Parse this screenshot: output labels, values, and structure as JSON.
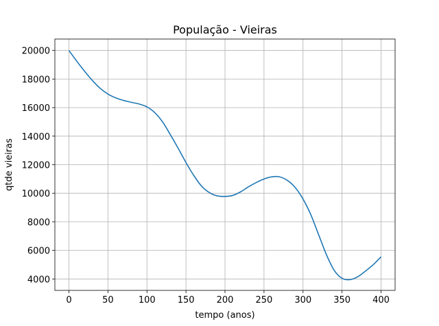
{
  "chart_data": {
    "type": "line",
    "title": "População - Vieiras",
    "xlabel": "tempo (anos)",
    "ylabel": "qtde vieiras",
    "xlim": [
      -18,
      418
    ],
    "ylim": [
      3200,
      20800
    ],
    "xticks": [
      0,
      50,
      100,
      150,
      200,
      250,
      300,
      350,
      400
    ],
    "yticks": [
      4000,
      6000,
      8000,
      10000,
      12000,
      14000,
      16000,
      18000,
      20000
    ],
    "grid": true,
    "series": [
      {
        "color": "#1f77b4",
        "x": [
          0,
          10,
          20,
          30,
          40,
          50,
          60,
          70,
          80,
          90,
          100,
          110,
          120,
          130,
          140,
          150,
          160,
          170,
          180,
          190,
          200,
          210,
          220,
          230,
          240,
          250,
          260,
          270,
          280,
          290,
          300,
          310,
          320,
          330,
          340,
          350,
          360,
          370,
          380,
          390,
          400
        ],
        "y": [
          20000,
          19250,
          18550,
          17900,
          17350,
          16950,
          16680,
          16500,
          16370,
          16250,
          16050,
          15650,
          15000,
          14100,
          13150,
          12150,
          11250,
          10500,
          10050,
          9820,
          9780,
          9850,
          10100,
          10450,
          10750,
          11000,
          11150,
          11150,
          10900,
          10400,
          9600,
          8500,
          7100,
          5700,
          4600,
          4050,
          3950,
          4150,
          4550,
          5000,
          5550
        ]
      }
    ]
  }
}
